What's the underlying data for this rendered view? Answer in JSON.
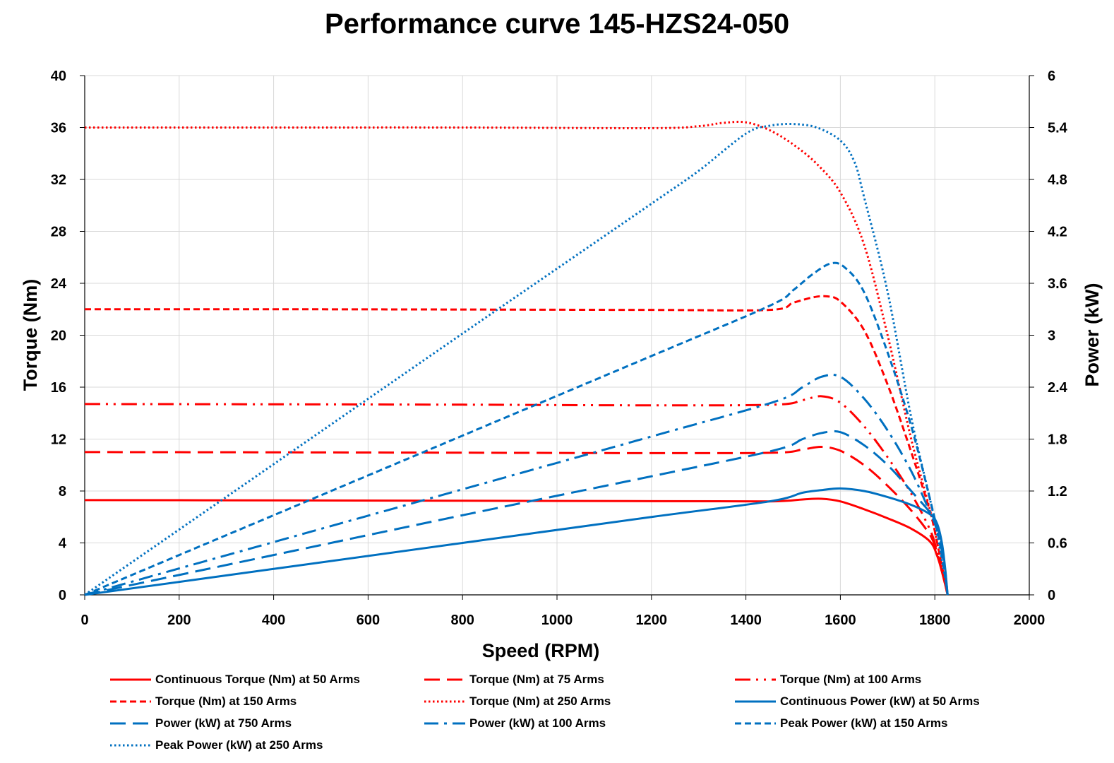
{
  "chart_data": {
    "type": "line",
    "title": "Performance curve 145-HZS24-050",
    "xlabel": "Speed (RPM)",
    "ylabel": "Torque (Nm)",
    "y2label": "Power (kW)",
    "xlim": [
      0,
      2000
    ],
    "ylim": [
      0,
      40
    ],
    "y2lim": [
      0,
      6
    ],
    "xticks": [
      "0",
      "200",
      "400",
      "600",
      "800",
      "1000",
      "1200",
      "1400",
      "1600",
      "1800",
      "2000"
    ],
    "yticks": [
      "0",
      "4",
      "8",
      "12",
      "16",
      "20",
      "24",
      "28",
      "32",
      "36",
      "40"
    ],
    "y2ticks": [
      "0",
      "0.6",
      "1.2",
      "1.8",
      "2.4",
      "3",
      "3.6",
      "4.2",
      "4.8",
      "5.4",
      "6"
    ],
    "grid": true,
    "legend_position": "bottom",
    "series": [
      {
        "name": "Continuous Torque (Nm) at 50 Arms",
        "axis": "left",
        "color": "#ff0000",
        "style": "solid",
        "x": [
          0,
          400,
          800,
          1200,
          1450,
          1520,
          1560,
          1600,
          1650,
          1700,
          1750,
          1790,
          1805,
          1815,
          1822,
          1827
        ],
        "y": [
          7.3,
          7.28,
          7.25,
          7.22,
          7.2,
          7.35,
          7.4,
          7.2,
          6.6,
          5.9,
          5.1,
          4.1,
          3.0,
          1.8,
          0.8,
          0
        ]
      },
      {
        "name": "Torque (Nm) at 75 Arms",
        "axis": "left",
        "color": "#ff0000",
        "style": "dash",
        "x": [
          0,
          400,
          800,
          1200,
          1460,
          1520,
          1560,
          1600,
          1650,
          1700,
          1750,
          1790,
          1805,
          1815,
          1822,
          1827
        ],
        "y": [
          11.0,
          10.98,
          10.95,
          10.92,
          10.95,
          11.2,
          11.4,
          11.1,
          10.0,
          8.4,
          6.5,
          4.6,
          3.2,
          1.8,
          0.8,
          0
        ]
      },
      {
        "name": "Torque (Nm) at 100 Arms",
        "axis": "left",
        "color": "#ff0000",
        "style": "dashdotdot",
        "x": [
          0,
          400,
          800,
          1200,
          1460,
          1520,
          1560,
          1600,
          1650,
          1700,
          1750,
          1790,
          1805,
          1815,
          1822,
          1827
        ],
        "y": [
          14.7,
          14.68,
          14.65,
          14.6,
          14.65,
          15.0,
          15.3,
          14.8,
          13.0,
          10.6,
          7.8,
          5.0,
          3.3,
          1.8,
          0.8,
          0
        ]
      },
      {
        "name": "Torque (Nm) at 150 Arms",
        "axis": "left",
        "color": "#ff0000",
        "style": "shortdash",
        "x": [
          0,
          400,
          800,
          1200,
          1450,
          1500,
          1540,
          1570,
          1600,
          1650,
          1700,
          1750,
          1790,
          1805,
          1815,
          1822,
          1827
        ],
        "y": [
          22.0,
          22.0,
          21.98,
          21.95,
          21.95,
          22.5,
          22.9,
          23.0,
          22.6,
          20.4,
          16.2,
          11.0,
          6.4,
          4.0,
          2.2,
          0.9,
          0
        ]
      },
      {
        "name": "Torque (Nm) at 250 Arms",
        "axis": "left",
        "color": "#ff0000",
        "style": "dot",
        "x": [
          0,
          400,
          800,
          1200,
          1300,
          1350,
          1400,
          1450,
          1500,
          1550,
          1600,
          1650,
          1700,
          1750,
          1790,
          1805,
          1815,
          1822,
          1827
        ],
        "y": [
          36.0,
          36.0,
          36.0,
          35.95,
          36.1,
          36.35,
          36.4,
          35.8,
          34.7,
          33.2,
          31.0,
          27.0,
          20.0,
          12.0,
          6.5,
          4.0,
          2.2,
          0.9,
          0
        ]
      },
      {
        "name": "Continuous Power (kW) at 50 Arms",
        "axis": "right",
        "color": "#0070c0",
        "style": "solid",
        "x": [
          0,
          400,
          800,
          1200,
          1450,
          1520,
          1560,
          1600,
          1650,
          1700,
          1750,
          1790,
          1805,
          1815,
          1822,
          1827
        ],
        "y": [
          0,
          0.3,
          0.6,
          0.9,
          1.08,
          1.18,
          1.21,
          1.23,
          1.2,
          1.13,
          1.04,
          0.93,
          0.82,
          0.6,
          0.3,
          0
        ]
      },
      {
        "name": "Power (kW) at 750 Arms",
        "axis": "right",
        "color": "#0070c0",
        "style": "longdash",
        "x": [
          0,
          400,
          800,
          1200,
          1460,
          1520,
          1560,
          1600,
          1650,
          1700,
          1750,
          1790,
          1805,
          1815,
          1822,
          1827
        ],
        "y": [
          0,
          0.46,
          0.92,
          1.37,
          1.67,
          1.8,
          1.87,
          1.88,
          1.73,
          1.5,
          1.2,
          0.95,
          0.8,
          0.55,
          0.28,
          0
        ]
      },
      {
        "name": "Power (kW) at 100 Arms",
        "axis": "right",
        "color": "#0070c0",
        "style": "dashdot",
        "x": [
          0,
          400,
          800,
          1200,
          1460,
          1520,
          1560,
          1600,
          1650,
          1700,
          1750,
          1790,
          1805,
          1815,
          1822,
          1827
        ],
        "y": [
          0,
          0.61,
          1.22,
          1.83,
          2.23,
          2.4,
          2.52,
          2.52,
          2.27,
          1.9,
          1.43,
          0.95,
          0.75,
          0.5,
          0.25,
          0
        ]
      },
      {
        "name": "Peak Power (kW) at 150 Arms",
        "axis": "right",
        "color": "#0070c0",
        "style": "shortdash",
        "x": [
          0,
          400,
          800,
          1200,
          1450,
          1500,
          1540,
          1580,
          1610,
          1650,
          1700,
          1750,
          1790,
          1805,
          1815,
          1822,
          1827
        ],
        "y": [
          0,
          0.92,
          1.84,
          2.76,
          3.34,
          3.52,
          3.7,
          3.83,
          3.78,
          3.5,
          2.8,
          1.95,
          1.1,
          0.75,
          0.45,
          0.2,
          0
        ]
      },
      {
        "name": "Peak Power (kW) at 250 Arms",
        "axis": "right",
        "color": "#0070c0",
        "style": "dot",
        "x": [
          0,
          400,
          800,
          1200,
          1300,
          1400,
          1450,
          1500,
          1550,
          1600,
          1630,
          1650,
          1700,
          1750,
          1790,
          1805,
          1815,
          1822,
          1827
        ],
        "y": [
          0,
          1.51,
          3.02,
          4.52,
          4.9,
          5.33,
          5.42,
          5.44,
          5.4,
          5.25,
          5.0,
          4.6,
          3.5,
          2.05,
          1.1,
          0.7,
          0.4,
          0.18,
          0
        ]
      }
    ]
  }
}
